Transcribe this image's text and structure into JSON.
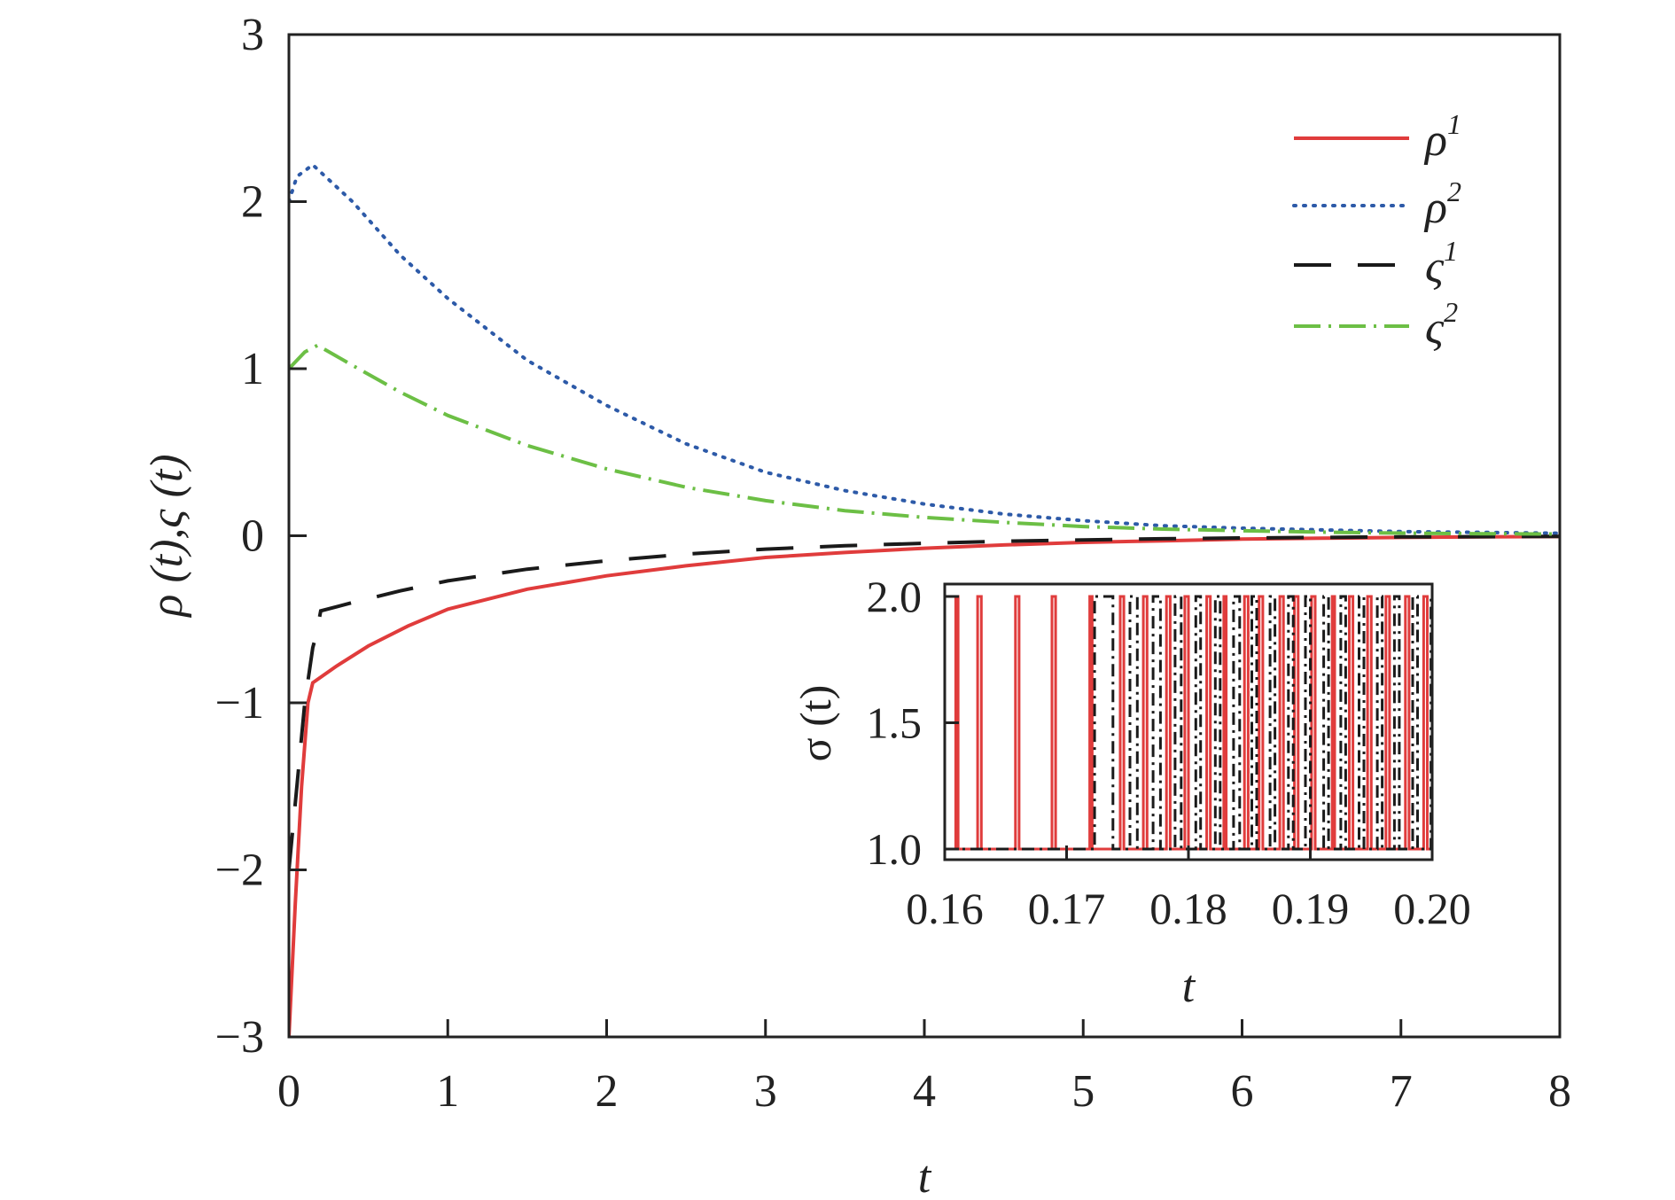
{
  "colors": {
    "rho1": "#e03c3c",
    "rho2": "#2d5aa8",
    "vs1": "#1a1a1a",
    "vs2": "#6cbf45",
    "axis": "#222222"
  },
  "chart_data": [
    {
      "type": "line",
      "xlabel": "t",
      "ylabel": "ρ (t),ς (t)",
      "xlim": [
        0,
        8
      ],
      "ylim": [
        -3,
        3
      ],
      "xticks": [
        "0",
        "1",
        "2",
        "3",
        "4",
        "5",
        "6",
        "7",
        "8"
      ],
      "yticks": [
        "−3",
        "−2",
        "−1",
        "0",
        "1",
        "2",
        "3"
      ],
      "grid": false,
      "legend_position": "top-right",
      "series": [
        {
          "key": "rho1",
          "name": "ρ",
          "name_sup": "1",
          "style": "solid",
          "x": [
            0,
            0.04,
            0.08,
            0.12,
            0.15,
            0.3,
            0.5,
            0.75,
            1.0,
            1.5,
            2.0,
            2.5,
            3.0,
            3.5,
            4.0,
            4.5,
            5.0,
            5.5,
            6.0,
            6.5,
            7.0,
            7.5,
            8.0
          ],
          "y": [
            -3.0,
            -2.2,
            -1.5,
            -1.0,
            -0.88,
            -0.78,
            -0.66,
            -0.54,
            -0.44,
            -0.32,
            -0.24,
            -0.18,
            -0.13,
            -0.1,
            -0.075,
            -0.055,
            -0.04,
            -0.03,
            -0.02,
            -0.015,
            -0.01,
            -0.007,
            -0.005
          ]
        },
        {
          "key": "rho2",
          "name": "ρ",
          "name_sup": "2",
          "style": "dotted",
          "x": [
            0,
            0.05,
            0.15,
            0.4,
            0.7,
            1.0,
            1.5,
            2.0,
            2.5,
            3.0,
            3.5,
            4.0,
            4.5,
            5.0,
            5.5,
            6.0,
            6.5,
            7.0,
            7.5,
            8.0
          ],
          "y": [
            2.0,
            2.15,
            2.22,
            2.0,
            1.68,
            1.42,
            1.05,
            0.78,
            0.55,
            0.38,
            0.27,
            0.19,
            0.13,
            0.09,
            0.06,
            0.045,
            0.035,
            0.025,
            0.02,
            0.015
          ]
        },
        {
          "key": "vs1",
          "name": "ς",
          "name_sup": "1",
          "style": "dashed",
          "x": [
            0,
            0.05,
            0.1,
            0.15,
            0.17,
            0.2,
            0.4,
            0.7,
            1.0,
            1.5,
            2.0,
            2.5,
            3.0,
            3.5,
            4.0,
            4.5,
            5.0,
            5.5,
            6.0,
            7.0,
            8.0
          ],
          "y": [
            -2.0,
            -1.5,
            -1.0,
            -0.67,
            -0.6,
            -0.45,
            -0.4,
            -0.33,
            -0.27,
            -0.2,
            -0.15,
            -0.11,
            -0.08,
            -0.06,
            -0.045,
            -0.033,
            -0.025,
            -0.018,
            -0.013,
            -0.007,
            -0.004
          ]
        },
        {
          "key": "vs2",
          "name": "ς",
          "name_sup": "2",
          "style": "dashdot",
          "x": [
            0,
            0.1,
            0.18,
            0.4,
            0.7,
            1.0,
            1.5,
            2.0,
            2.5,
            3.0,
            3.5,
            4.0,
            4.5,
            5.0,
            5.5,
            6.0,
            6.5,
            7.0,
            7.5,
            8.0
          ],
          "y": [
            1.0,
            1.1,
            1.14,
            1.02,
            0.86,
            0.72,
            0.54,
            0.4,
            0.29,
            0.21,
            0.15,
            0.11,
            0.08,
            0.055,
            0.04,
            0.03,
            0.022,
            0.016,
            0.012,
            0.01
          ]
        }
      ]
    },
    {
      "type": "line",
      "position": "inset, bottom-right",
      "xlabel": "t",
      "ylabel": "σ (t)",
      "xlim": [
        0.16,
        0.2
      ],
      "ylim": [
        1.0,
        2.0
      ],
      "xticks": [
        "0.16",
        "0.17",
        "0.18",
        "0.19",
        "0.20"
      ],
      "yticks": [
        "1.0",
        "1.5",
        "2.0"
      ],
      "series": [
        {
          "key": "sigma_red",
          "style": "solid",
          "color": "#e03c3c",
          "switch_times": [
            0.1609,
            0.1611,
            0.1627,
            0.163,
            0.1658,
            0.1661,
            0.1688,
            0.1691,
            0.1719,
            0.1721,
            0.1744,
            0.1747,
            0.1763,
            0.1766,
            0.1782,
            0.1785,
            0.1797,
            0.18,
            0.1815,
            0.1818,
            0.1829,
            0.1831,
            0.1846,
            0.1849,
            0.1858,
            0.1861,
            0.1875,
            0.1878,
            0.1887,
            0.189,
            0.1901,
            0.1904,
            0.1918,
            0.192,
            0.1932,
            0.1935,
            0.1947,
            0.195,
            0.1962,
            0.1965,
            0.1978,
            0.1981,
            0.1993,
            0.1996,
            0.2003
          ],
          "levels": [
            2,
            1,
            2,
            1,
            2,
            1,
            2,
            1,
            2,
            1,
            2,
            1,
            2,
            1,
            2,
            1,
            2,
            1,
            2,
            1,
            2,
            1,
            2,
            1,
            2,
            1,
            2,
            1,
            2,
            1,
            2,
            1,
            2,
            1,
            2,
            1,
            2,
            1,
            2,
            1,
            2,
            1,
            2,
            1,
            2
          ]
        },
        {
          "key": "sigma_black",
          "style": "dashdot",
          "color": "#1a1a1a",
          "switch_times": [
            0.1723,
            0.1738,
            0.1752,
            0.1758,
            0.1771,
            0.1777,
            0.1789,
            0.1794,
            0.1806,
            0.181,
            0.1822,
            0.1826,
            0.1837,
            0.1842,
            0.1852,
            0.1856,
            0.1867,
            0.1871,
            0.1882,
            0.1886,
            0.1896,
            0.19,
            0.1911,
            0.1915,
            0.1925,
            0.1929,
            0.194,
            0.1944,
            0.1955,
            0.1959,
            0.1969,
            0.1973,
            0.1984,
            0.1988,
            0.1999,
            0.2003
          ],
          "levels": [
            2,
            1,
            2,
            1,
            2,
            1,
            2,
            1,
            2,
            1,
            2,
            1,
            2,
            1,
            2,
            1,
            2,
            1,
            2,
            1,
            2,
            1,
            2,
            1,
            2,
            1,
            2,
            1,
            2,
            1,
            2,
            1,
            2,
            1,
            2,
            1
          ]
        }
      ]
    }
  ]
}
